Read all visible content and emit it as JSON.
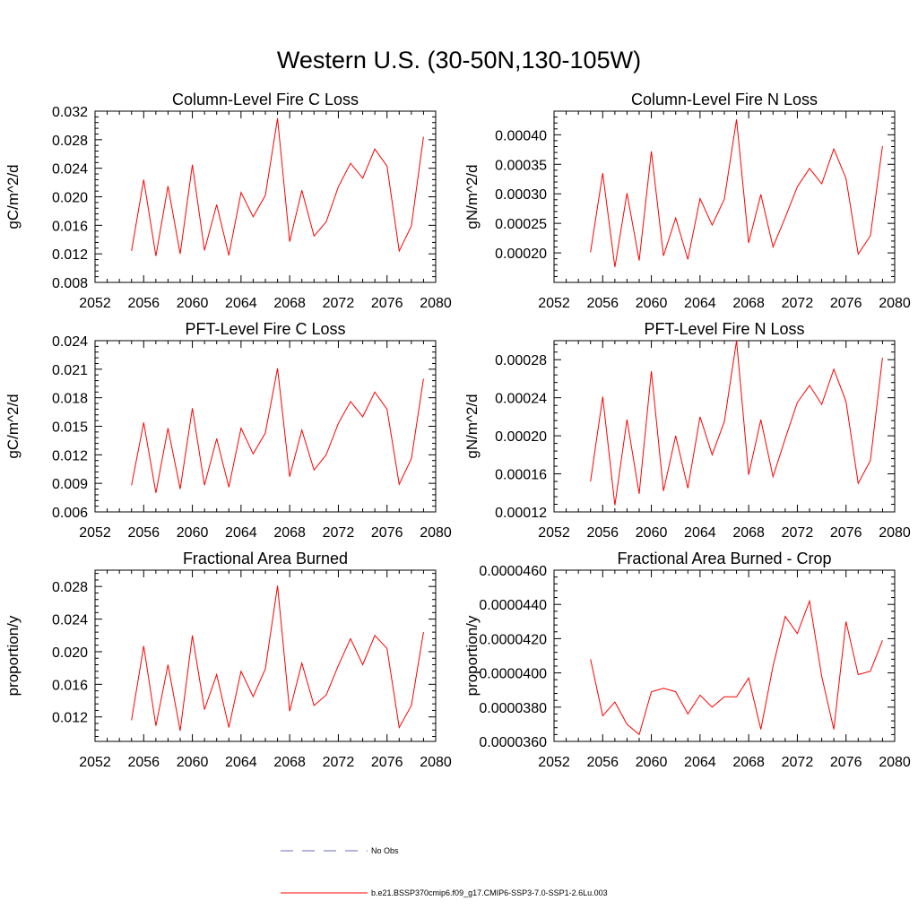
{
  "title": "Western U.S. (30-50N,130-105W)",
  "colors": {
    "series": "#ff0000",
    "obs": "#6a6ab8",
    "axis": "#000000"
  },
  "legend": {
    "entries": [
      {
        "label": "No Obs",
        "style": "dashed",
        "color": "#6a6ab8"
      },
      {
        "label": "b.e21.BSSP370cmip6.f09_g17.CMIP6-SSP3-7.0-SSP1-2.6Lu.003",
        "style": "solid",
        "color": "#ff0000"
      }
    ]
  },
  "chart_data": [
    {
      "type": "line",
      "title": "Column-Level Fire C Loss",
      "ylabel": "gC/m^2/d",
      "xlim": [
        2052,
        2080
      ],
      "ylim": [
        0.008,
        0.032
      ],
      "xticks": [
        2052,
        2056,
        2060,
        2064,
        2068,
        2072,
        2076,
        2080
      ],
      "yticks": [
        "0.008",
        "0.012",
        "0.016",
        "0.020",
        "0.024",
        "0.028",
        "0.032"
      ],
      "x": [
        2055,
        2056,
        2057,
        2058,
        2059,
        2060,
        2061,
        2062,
        2063,
        2064,
        2065,
        2066,
        2067,
        2068,
        2069,
        2070,
        2071,
        2072,
        2073,
        2074,
        2075,
        2076,
        2077,
        2078,
        2079
      ],
      "series": [
        {
          "values": [
            0.0124,
            0.0224,
            0.0117,
            0.0215,
            0.012,
            0.0245,
            0.0125,
            0.0189,
            0.0118,
            0.0206,
            0.0172,
            0.0202,
            0.031,
            0.0137,
            0.0209,
            0.0145,
            0.0165,
            0.0214,
            0.0247,
            0.0226,
            0.0267,
            0.0243,
            0.0124,
            0.0159,
            0.0284
          ]
        }
      ]
    },
    {
      "type": "line",
      "title": "Column-Level Fire N Loss",
      "ylabel": "gN/m^2/d",
      "xlim": [
        2052,
        2080
      ],
      "ylim": [
        0.00015,
        0.00044
      ],
      "xticks": [
        2052,
        2056,
        2060,
        2064,
        2068,
        2072,
        2076,
        2080
      ],
      "yticks": [
        "0.00020",
        "0.00025",
        "0.00030",
        "0.00035",
        "0.00040"
      ],
      "x": [
        2055,
        2056,
        2057,
        2058,
        2059,
        2060,
        2061,
        2062,
        2063,
        2064,
        2065,
        2066,
        2067,
        2068,
        2069,
        2070,
        2071,
        2072,
        2073,
        2074,
        2075,
        2076,
        2077,
        2078,
        2079
      ],
      "series": [
        {
          "values": [
            0.000201,
            0.000335,
            0.000176,
            0.000301,
            0.000187,
            0.000372,
            0.000195,
            0.000259,
            0.000189,
            0.000292,
            0.000247,
            0.000291,
            0.000426,
            0.000217,
            0.000299,
            0.00021,
            0.00026,
            0.000312,
            0.000343,
            0.000317,
            0.000376,
            0.000326,
            0.000198,
            0.000229,
            0.000381
          ]
        }
      ]
    },
    {
      "type": "line",
      "title": "PFT-Level Fire C Loss",
      "ylabel": "gC/m^2/d",
      "xlim": [
        2052,
        2080
      ],
      "ylim": [
        0.006,
        0.024
      ],
      "xticks": [
        2052,
        2056,
        2060,
        2064,
        2068,
        2072,
        2076,
        2080
      ],
      "yticks": [
        "0.006",
        "0.009",
        "0.012",
        "0.015",
        "0.018",
        "0.021",
        "0.024"
      ],
      "x": [
        2055,
        2056,
        2057,
        2058,
        2059,
        2060,
        2061,
        2062,
        2063,
        2064,
        2065,
        2066,
        2067,
        2068,
        2069,
        2070,
        2071,
        2072,
        2073,
        2074,
        2075,
        2076,
        2077,
        2078,
        2079
      ],
      "series": [
        {
          "values": [
            0.0088,
            0.0154,
            0.008,
            0.0148,
            0.0084,
            0.0169,
            0.0088,
            0.0137,
            0.0086,
            0.0148,
            0.0121,
            0.0143,
            0.0211,
            0.0097,
            0.0146,
            0.0104,
            0.012,
            0.0153,
            0.0176,
            0.016,
            0.0186,
            0.0168,
            0.0089,
            0.0116,
            0.02
          ]
        }
      ]
    },
    {
      "type": "line",
      "title": "PFT-Level Fire N Loss",
      "ylabel": "gN/m^2/d",
      "xlim": [
        2052,
        2080
      ],
      "ylim": [
        0.00012,
        0.0003
      ],
      "xticks": [
        2052,
        2056,
        2060,
        2064,
        2068,
        2072,
        2076,
        2080
      ],
      "yticks": [
        "0.00012",
        "0.00016",
        "0.00020",
        "0.00024",
        "0.00028"
      ],
      "x": [
        2055,
        2056,
        2057,
        2058,
        2059,
        2060,
        2061,
        2062,
        2063,
        2064,
        2065,
        2066,
        2067,
        2068,
        2069,
        2070,
        2071,
        2072,
        2073,
        2074,
        2075,
        2076,
        2077,
        2078,
        2079
      ],
      "series": [
        {
          "values": [
            0.000152,
            0.000241,
            0.000127,
            0.000217,
            0.000139,
            0.000268,
            0.000142,
            0.0002,
            0.000145,
            0.00022,
            0.00018,
            0.000215,
            0.0003,
            0.000159,
            0.000217,
            0.000157,
            0.000197,
            0.000235,
            0.000253,
            0.000233,
            0.00027,
            0.000236,
            0.00015,
            0.000174,
            0.000282
          ]
        }
      ]
    },
    {
      "type": "line",
      "title": "Fractional Area Burned",
      "ylabel": "proportion/y",
      "xlim": [
        2052,
        2080
      ],
      "ylim": [
        0.009,
        0.03
      ],
      "xticks": [
        2052,
        2056,
        2060,
        2064,
        2068,
        2072,
        2076,
        2080
      ],
      "yticks": [
        "0.012",
        "0.016",
        "0.020",
        "0.024",
        "0.028"
      ],
      "x": [
        2055,
        2056,
        2057,
        2058,
        2059,
        2060,
        2061,
        2062,
        2063,
        2064,
        2065,
        2066,
        2067,
        2068,
        2069,
        2070,
        2071,
        2072,
        2073,
        2074,
        2075,
        2076,
        2077,
        2078,
        2079
      ],
      "series": [
        {
          "values": [
            0.0116,
            0.0207,
            0.0109,
            0.0184,
            0.0103,
            0.022,
            0.0129,
            0.0172,
            0.0107,
            0.0176,
            0.0145,
            0.0179,
            0.0281,
            0.0127,
            0.0186,
            0.0134,
            0.0147,
            0.0183,
            0.0216,
            0.0184,
            0.022,
            0.0204,
            0.0107,
            0.0134,
            0.0224
          ]
        }
      ]
    },
    {
      "type": "line",
      "title": "Fractional Area Burned - Crop",
      "ylabel": "proportion/y",
      "xlim": [
        2052,
        2080
      ],
      "ylim": [
        3.6e-05,
        4.6e-05
      ],
      "xticks": [
        2052,
        2056,
        2060,
        2064,
        2068,
        2072,
        2076,
        2080
      ],
      "yticks": [
        "0.0000360",
        "0.0000380",
        "0.0000400",
        "0.0000420",
        "0.0000440",
        "0.0000460"
      ],
      "x": [
        2055,
        2056,
        2057,
        2058,
        2059,
        2060,
        2061,
        2062,
        2063,
        2064,
        2065,
        2066,
        2067,
        2068,
        2069,
        2070,
        2071,
        2072,
        2073,
        2074,
        2075,
        2076,
        2077,
        2078,
        2079
      ],
      "series": [
        {
          "values": [
            4.08e-05,
            3.75e-05,
            3.83e-05,
            3.7e-05,
            3.64e-05,
            3.89e-05,
            3.91e-05,
            3.89e-05,
            3.76e-05,
            3.87e-05,
            3.8e-05,
            3.86e-05,
            3.86e-05,
            3.97e-05,
            3.67e-05,
            4.04e-05,
            4.33e-05,
            4.23e-05,
            4.42e-05,
            3.98e-05,
            3.67e-05,
            4.3e-05,
            3.99e-05,
            4.01e-05,
            4.19e-05
          ]
        }
      ]
    }
  ]
}
